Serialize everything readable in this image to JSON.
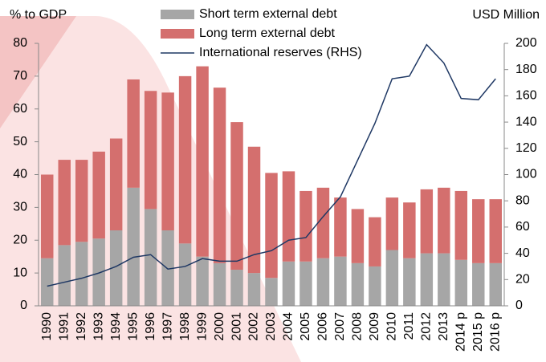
{
  "chart_data": {
    "type": "bar_line",
    "y_axis_label": "% to GDP",
    "y2_axis_label": "USD Million",
    "categories": [
      "1990",
      "1991",
      "1992",
      "1993",
      "1994",
      "1995",
      "1996",
      "1997",
      "1998",
      "1999",
      "2000",
      "2001",
      "2002",
      "2003",
      "2004",
      "2005",
      "2006",
      "2007",
      "2008",
      "2009",
      "2010",
      "2011",
      "2012",
      "2013",
      "2014 p",
      "2015 p",
      "2016 p"
    ],
    "series": [
      {
        "name": "Short term external debt",
        "color": "#a6a6a6",
        "stacked": true,
        "values": [
          14.5,
          18.5,
          19.5,
          20.5,
          23,
          36,
          29.5,
          23,
          19,
          15,
          13,
          11,
          10,
          8.5,
          13.5,
          13.5,
          14.5,
          15,
          13,
          12,
          17,
          14.5,
          16,
          16,
          14,
          13,
          13
        ]
      },
      {
        "name": "Long term external debt",
        "color": "#d46f6e",
        "stacked": true,
        "values": [
          25.5,
          26,
          25,
          26.5,
          28,
          33,
          36,
          42,
          51,
          58,
          53.5,
          45,
          38.5,
          32,
          27.5,
          21.5,
          21.5,
          18,
          16.5,
          15,
          16,
          17,
          19.5,
          20,
          21,
          19.5,
          19.5
        ]
      },
      {
        "name": "International reserves (RHS)",
        "color": "#1f3864",
        "axis": "y2",
        "line": true,
        "values": [
          15,
          18,
          21,
          25,
          30,
          37,
          39,
          28,
          30,
          36,
          34,
          34,
          39,
          42,
          50,
          52,
          68,
          83,
          111,
          139,
          173,
          175,
          199,
          185,
          158,
          157,
          173
        ]
      }
    ],
    "ylim": [
      0,
      80
    ],
    "yticks": [
      0,
      10,
      20,
      30,
      40,
      50,
      60,
      70,
      80
    ],
    "y2lim": [
      0,
      200
    ],
    "y2ticks": [
      0,
      20,
      40,
      60,
      80,
      100,
      120,
      140,
      160,
      180,
      200
    ],
    "legend": "top"
  }
}
